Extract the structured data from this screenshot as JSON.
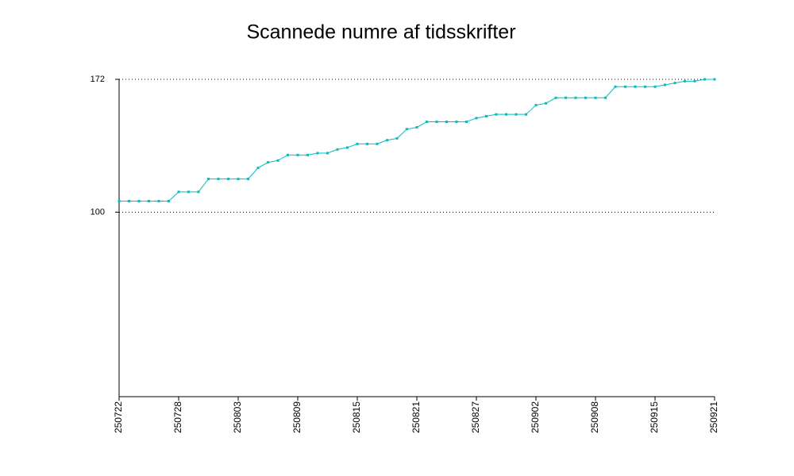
{
  "chart_data": {
    "type": "line",
    "title": "Scannede numre af tidsskrifter",
    "categories": [
      "250722",
      null,
      null,
      null,
      null,
      null,
      "250728",
      null,
      null,
      null,
      null,
      null,
      "250803",
      null,
      null,
      null,
      null,
      null,
      "250809",
      null,
      null,
      null,
      null,
      null,
      "250815",
      null,
      null,
      null,
      null,
      null,
      "250821",
      null,
      null,
      null,
      null,
      null,
      "250827",
      null,
      null,
      null,
      null,
      null,
      "250902",
      null,
      null,
      null,
      null,
      null,
      "250908",
      null,
      null,
      null,
      null,
      null,
      "250915",
      null,
      null,
      null,
      null,
      null,
      "250921"
    ],
    "series": [
      {
        "name": null,
        "color": "#00c0c0",
        "values": [
          106,
          106,
          106,
          106,
          106,
          106,
          111,
          111,
          111,
          118,
          118,
          118,
          118,
          118,
          124,
          127,
          128,
          131,
          131,
          131,
          132,
          132,
          134,
          135,
          137,
          137,
          137,
          139,
          140,
          145,
          146,
          149,
          149,
          149,
          149,
          149,
          151,
          152,
          153,
          153,
          153,
          153,
          158,
          159,
          162,
          162,
          162,
          162,
          162,
          162,
          168,
          168,
          168,
          168,
          168,
          169,
          170,
          171,
          171,
          172,
          172
        ]
      }
    ],
    "ylim": [
      0,
      172
    ],
    "yticks": [
      100,
      172
    ],
    "grid": true
  }
}
